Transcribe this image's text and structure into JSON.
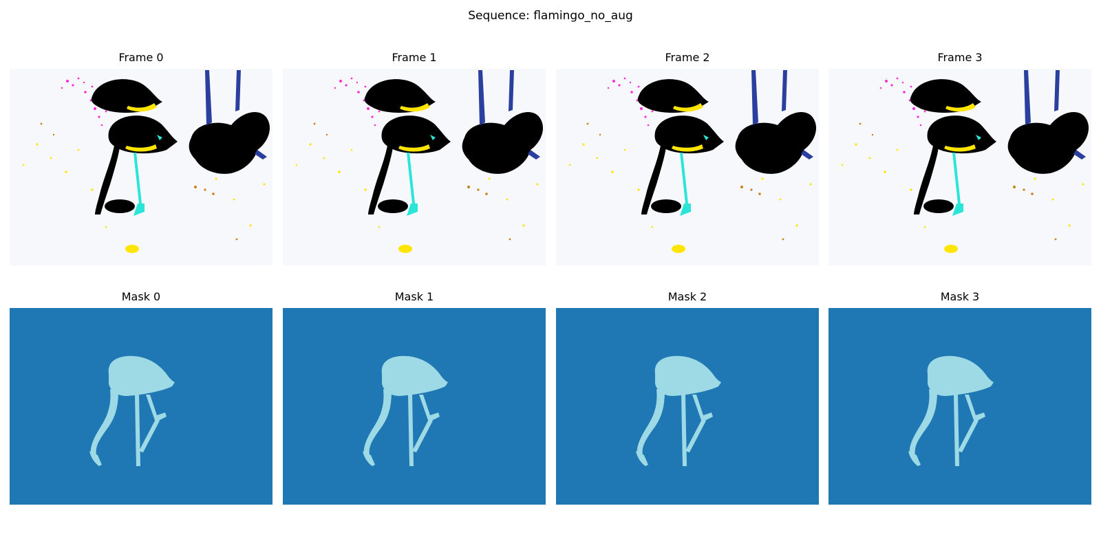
{
  "figure": {
    "suptitle": "Sequence: flamingo_no_aug"
  },
  "frames": [
    {
      "title": "Frame 0"
    },
    {
      "title": "Frame 1"
    },
    {
      "title": "Frame 2"
    },
    {
      "title": "Frame 3"
    }
  ],
  "masks": [
    {
      "title": "Mask 0"
    },
    {
      "title": "Mask 1"
    },
    {
      "title": "Mask 2"
    },
    {
      "title": "Mask 3"
    }
  ],
  "colors": {
    "mask_background": "#1f77b4",
    "mask_foreground": "#9edae5",
    "frame_background": "#f7f8fb",
    "frame_bird": "#000000",
    "accent_magenta": "#ff2ad9",
    "accent_yellow": "#ffe500",
    "accent_cyan": "#2be6d8",
    "accent_blue": "#2b3f9e"
  }
}
